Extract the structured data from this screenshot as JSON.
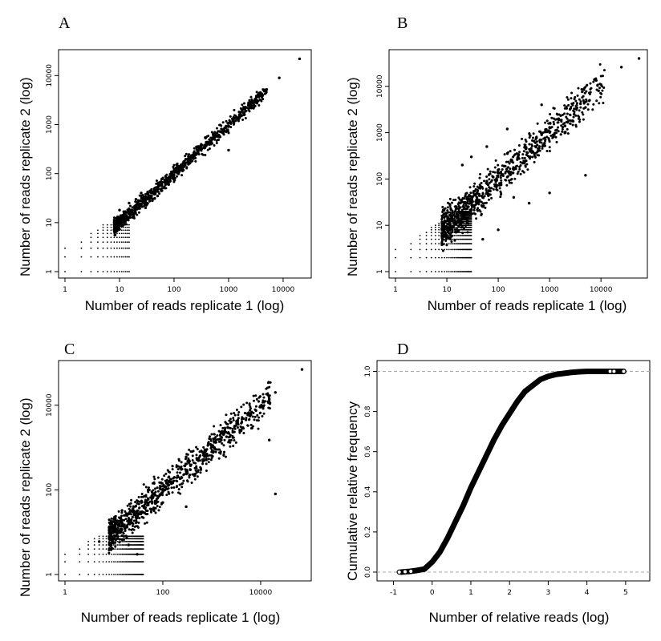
{
  "chart_data": [
    {
      "panel": "A",
      "type": "scatter",
      "xlabel": "Number of reads replicate 1 (log)",
      "ylabel": "Number of reads replicate 2 (log)",
      "xscale": "log",
      "yscale": "log",
      "xlim": [
        1,
        25000
      ],
      "ylim": [
        1,
        25000
      ],
      "xticks": [
        1,
        10,
        100,
        1000,
        10000
      ],
      "yticks": [
        1,
        10,
        100,
        1000,
        10000
      ],
      "xtick_labels": [
        "1",
        "10",
        "100",
        "1000",
        "10000"
      ],
      "ytick_labels": [
        "1",
        "10",
        "100",
        "1000",
        "10000"
      ],
      "grid": false,
      "points": [
        [
          20000,
          22000
        ],
        [
          8500,
          9000
        ],
        [
          5000,
          5200
        ],
        [
          3800,
          3900
        ],
        [
          3000,
          3100
        ],
        [
          2500,
          2450
        ],
        [
          2000,
          2100
        ],
        [
          1600,
          1550
        ],
        [
          1300,
          1350
        ],
        [
          1100,
          1050
        ],
        [
          900,
          930
        ],
        [
          800,
          780
        ],
        [
          700,
          720
        ],
        [
          600,
          590
        ],
        [
          520,
          540
        ],
        [
          450,
          440
        ],
        [
          400,
          410
        ],
        [
          350,
          340
        ],
        [
          300,
          310
        ],
        [
          1000,
          300
        ],
        [
          250,
          240
        ],
        [
          220,
          230
        ],
        [
          200,
          190
        ],
        [
          180,
          185
        ],
        [
          160,
          150
        ],
        [
          140,
          145
        ],
        [
          130,
          120
        ],
        [
          110,
          115
        ],
        [
          100,
          95
        ],
        [
          90,
          92
        ],
        [
          80,
          78
        ],
        [
          70,
          72
        ],
        [
          60,
          58
        ],
        [
          50,
          52
        ],
        [
          45,
          40
        ],
        [
          40,
          42
        ],
        [
          35,
          33
        ],
        [
          30,
          31
        ],
        [
          25,
          24
        ],
        [
          20,
          22
        ],
        [
          18,
          15
        ],
        [
          15,
          16
        ],
        [
          12,
          11
        ],
        [
          10,
          12
        ],
        [
          9,
          8
        ],
        [
          8,
          9
        ],
        [
          30,
          20
        ],
        [
          40,
          28
        ],
        [
          60,
          45
        ],
        [
          80,
          60
        ],
        [
          100,
          75
        ],
        [
          50,
          35
        ],
        [
          20,
          30
        ],
        [
          15,
          25
        ],
        [
          25,
          40
        ],
        [
          10,
          18
        ]
      ],
      "note_grid_region": "discrete low-count dot lattice for x in 1..15, y in 1..9"
    },
    {
      "panel": "B",
      "type": "scatter",
      "xlabel": "Number of reads replicate 1 (log)",
      "ylabel": "Number of reads replicate 2 (log)",
      "xscale": "log",
      "yscale": "log",
      "xlim": [
        1,
        60000
      ],
      "ylim": [
        1,
        45000
      ],
      "xticks": [
        1,
        10,
        100,
        1000,
        10000
      ],
      "yticks": [
        1,
        10,
        100,
        1000,
        10000
      ],
      "xtick_labels": [
        "1",
        "10",
        "100",
        "1000",
        "10000"
      ],
      "ytick_labels": [
        "1",
        "10",
        "100",
        "1000",
        "10000"
      ],
      "grid": false,
      "points": [
        [
          55000,
          40000
        ],
        [
          25000,
          26000
        ],
        [
          9000,
          8000
        ],
        [
          6000,
          5000
        ],
        [
          5000,
          3500
        ],
        [
          4000,
          4200
        ],
        [
          3000,
          2500
        ],
        [
          2500,
          3200
        ],
        [
          2000,
          1400
        ],
        [
          1500,
          2000
        ],
        [
          1200,
          900
        ],
        [
          1000,
          1300
        ],
        [
          800,
          600
        ],
        [
          700,
          900
        ],
        [
          600,
          450
        ],
        [
          500,
          650
        ],
        [
          400,
          300
        ],
        [
          350,
          480
        ],
        [
          300,
          220
        ],
        [
          250,
          330
        ],
        [
          200,
          160
        ],
        [
          180,
          240
        ],
        [
          150,
          110
        ],
        [
          130,
          190
        ],
        [
          110,
          80
        ],
        [
          100,
          140
        ],
        [
          90,
          70
        ],
        [
          80,
          110
        ],
        [
          70,
          55
        ],
        [
          60,
          90
        ],
        [
          50,
          40
        ],
        [
          45,
          70
        ],
        [
          40,
          30
        ],
        [
          35,
          55
        ],
        [
          30,
          22
        ],
        [
          25,
          40
        ],
        [
          20,
          15
        ],
        [
          18,
          30
        ],
        [
          15,
          11
        ],
        [
          12,
          22
        ],
        [
          10,
          8
        ],
        [
          9,
          15
        ],
        [
          5000,
          120
        ],
        [
          100,
          8
        ],
        [
          400,
          30
        ],
        [
          1000,
          50
        ],
        [
          30,
          300
        ],
        [
          60,
          500
        ],
        [
          20,
          200
        ],
        [
          700,
          4000
        ],
        [
          50,
          5
        ],
        [
          200,
          40
        ],
        [
          150,
          1200
        ]
      ],
      "note_grid_region": "discrete low-count dot lattice for x in 1..30, y in 1..20"
    },
    {
      "panel": "C",
      "type": "scatter",
      "xlabel": "Number of reads replicate 1 (log)",
      "ylabel": "Number of reads replicate 2 (log)",
      "xscale": "log",
      "yscale": "log",
      "xlim": [
        1,
        80000
      ],
      "ylim": [
        1,
        80000
      ],
      "xticks": [
        1,
        100,
        10000
      ],
      "yticks": [
        1,
        100,
        10000
      ],
      "xtick_labels": [
        "1",
        "100",
        "10000"
      ],
      "ytick_labels": [
        "1",
        "100",
        "10000"
      ],
      "grid": false,
      "points": [
        [
          70000,
          70000
        ],
        [
          20000,
          20000
        ],
        [
          15000,
          14000
        ],
        [
          10000,
          9000
        ],
        [
          8000,
          7500
        ],
        [
          5000,
          4500
        ],
        [
          3000,
          3200
        ],
        [
          2000,
          1800
        ],
        [
          1500,
          1400
        ],
        [
          1000,
          1100
        ],
        [
          800,
          700
        ],
        [
          500,
          520
        ],
        [
          300,
          280
        ],
        [
          200,
          210
        ],
        [
          150,
          140
        ],
        [
          100,
          95
        ],
        [
          70,
          75
        ],
        [
          50,
          48
        ],
        [
          30,
          32
        ],
        [
          20,
          19
        ],
        [
          15,
          16
        ],
        [
          10,
          11
        ],
        [
          8,
          7
        ],
        [
          5,
          6
        ],
        [
          4000,
          2500
        ],
        [
          2500,
          4000
        ],
        [
          600,
          300
        ],
        [
          300,
          600
        ],
        [
          100,
          50
        ],
        [
          50,
          100
        ],
        [
          20000,
          80
        ],
        [
          15000,
          1500
        ],
        [
          300,
          40
        ],
        [
          30,
          3
        ],
        [
          20,
          5
        ]
      ],
      "note_grid_region": "discrete low-count dot lattice for x in 1..40, y in 1..8"
    },
    {
      "panel": "D",
      "type": "line",
      "xlabel": "Number of relative reads (log)",
      "ylabel": "Cumulative relative frequency",
      "xlim": [
        -1.3,
        5.5
      ],
      "ylim": [
        -0.02,
        1.03
      ],
      "xticks": [
        -1,
        0,
        1,
        2,
        3,
        4,
        5
      ],
      "yticks": [
        0.0,
        0.2,
        0.4,
        0.6,
        0.8,
        1.0
      ],
      "xtick_labels": [
        "-1",
        "0",
        "1",
        "2",
        "3",
        "4",
        "5"
      ],
      "ytick_labels": [
        "0.0",
        "0.2",
        "0.4",
        "0.6",
        "0.8",
        "1.0"
      ],
      "reference_lines": [
        0.0,
        1.0
      ],
      "x": [
        -0.8,
        -0.6,
        -0.4,
        -0.2,
        0.0,
        0.2,
        0.4,
        0.6,
        0.8,
        1.0,
        1.2,
        1.4,
        1.6,
        1.8,
        2.0,
        2.2,
        2.4,
        2.6,
        2.8,
        3.0,
        3.2,
        3.4,
        3.6,
        3.8,
        4.0,
        4.6,
        4.7,
        4.95
      ],
      "y": [
        0.0,
        0.003,
        0.008,
        0.015,
        0.05,
        0.1,
        0.17,
        0.25,
        0.33,
        0.42,
        0.5,
        0.58,
        0.66,
        0.73,
        0.79,
        0.85,
        0.9,
        0.93,
        0.96,
        0.975,
        0.985,
        0.99,
        0.995,
        0.998,
        1.0,
        1.0,
        1.0,
        1.0
      ],
      "grid": false
    }
  ]
}
